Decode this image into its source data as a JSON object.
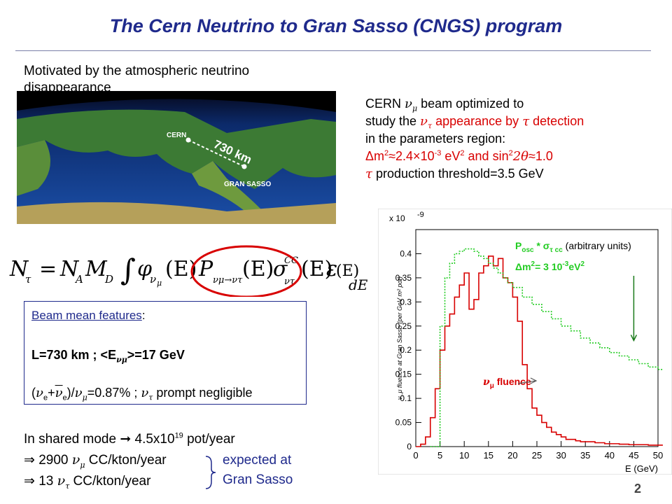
{
  "slide": {
    "title": "The Cern Neutrino to Gran Sasso (CNGS) program",
    "motivation": "Motivated by the atmospheric neutrino disappearance",
    "map": {
      "cern_label": "CERN",
      "distance_label": "730 km",
      "gransasso_label": "GRAN SASSO"
    },
    "cngs": {
      "line1_a": "CERN ",
      "line1_sym": "ν",
      "line1_sub": "μ",
      "line1_b": " beam optimized to",
      "line2_a": "study the ",
      "line2_sym": "ν",
      "line2_sub": "τ",
      "line2_b": " appearance by ",
      "line2_tau": "τ",
      "line2_c": " detection",
      "line3": "in the parameters region:",
      "line4_a": "Δm",
      "line4_exp1": "2",
      "line4_b": "≈2.4×10",
      "line4_exp2": "-3",
      "line4_c": " eV",
      "line4_exp3": "2",
      "line4_d": " and sin",
      "line4_exp4": "2",
      "line4_e": "2θ",
      "line4_f": "≈1.0",
      "line5_tau": "τ",
      "line5": " production threshold=3.5 GeV"
    },
    "formula": {
      "lhs": "N",
      "lhs_sub": "τ",
      "eq": "=",
      "na": "N",
      "na_sub": "A",
      "md": "M",
      "md_sub": "D",
      "integral": "∫",
      "phi": "φ",
      "phi_sub_nu": "ν",
      "phi_sub_mu": "μ",
      "argE": "(E)",
      "P": "P",
      "P_sub": "νμ→ντ",
      "sigma": "σ",
      "sigma_sup": "CC",
      "sigma_sub": "ντ",
      "eps": "ε",
      "dE": "dE"
    },
    "features": {
      "heading": "Beam mean features",
      "heading_colon": ":",
      "l_line_a": "L=730 km ; <E",
      "l_line_sub": "νμ",
      "l_line_b": ">=17 GeV",
      "ratio_a": "(",
      "ratio_nu": "ν",
      "ratio_sub_e": "e",
      "ratio_plus": "+",
      "ratio_nubar": "ν",
      "ratio_sub_e2": "e",
      "ratio_b": ")/",
      "ratio_nu2": "ν",
      "ratio_sub_mu": "μ",
      "ratio_c": "=0.87%  ; ",
      "ratio_nu3": "ν",
      "ratio_sub_tau": "τ",
      "ratio_d": " prompt negligible"
    },
    "shared_mode_a": "In shared mode ",
    "shared_mode_arrow": "➞",
    "shared_mode_b": " 4.5x10",
    "shared_mode_exp": "19",
    "shared_mode_c": " pot/year",
    "rate1_arrow": "⇒",
    "rate1_a": " 2900 ",
    "rate1_nu": "ν",
    "rate1_sub": "μ",
    "rate1_b": " CC/kton/year",
    "rate2_arrow": "⇒",
    "rate2_a": " 13 ",
    "rate2_nu": "ν",
    "rate2_sub": "τ",
    "rate2_b": " CC/kton/year",
    "expected_1": "expected at",
    "expected_2": "Gran Sasso",
    "page_number": "2"
  },
  "colors": {
    "title": "#1f2a8c",
    "highlight": "#d80000",
    "green": "#22cc22"
  },
  "chart_data": {
    "type": "line",
    "xlabel": "E (GeV)",
    "ylabel": "ν_μ fluence at Gran Sasso (per GeV m² pot)",
    "y_multiplier": "x 10",
    "y_multiplier_exp": "-9",
    "xlim": [
      0,
      50
    ],
    "ylim": [
      0,
      0.45
    ],
    "x_ticks": [
      0,
      5,
      10,
      15,
      20,
      25,
      30,
      35,
      40,
      45,
      50
    ],
    "y_ticks": [
      0,
      0.05,
      0.1,
      0.15,
      0.2,
      0.25,
      0.3,
      0.35,
      0.4
    ],
    "series": [
      {
        "name": "ν_μ fluence",
        "color": "#d80000",
        "style": "step",
        "x": [
          0,
          1,
          2,
          3,
          4,
          5,
          6,
          7,
          8,
          9,
          10,
          11,
          12,
          13,
          14,
          15,
          16,
          17,
          18,
          19,
          20,
          21,
          22,
          23,
          24,
          25,
          26,
          27,
          28,
          29,
          30,
          31,
          32,
          33,
          34,
          35,
          36,
          37,
          38,
          39,
          40,
          41,
          42,
          43,
          44,
          45,
          46,
          47,
          48,
          49,
          50
        ],
        "y": [
          0.0,
          0.005,
          0.02,
          0.06,
          0.12,
          0.2,
          0.25,
          0.275,
          0.31,
          0.335,
          0.36,
          0.285,
          0.305,
          0.36,
          0.375,
          0.395,
          0.375,
          0.39,
          0.35,
          0.34,
          0.31,
          0.26,
          0.17,
          0.12,
          0.08,
          0.065,
          0.05,
          0.04,
          0.03,
          0.025,
          0.02,
          0.015,
          0.015,
          0.012,
          0.01,
          0.01,
          0.01,
          0.008,
          0.008,
          0.006,
          0.006,
          0.006,
          0.005,
          0.005,
          0.004,
          0.004,
          0.004,
          0.004,
          0.003,
          0.003,
          0.003
        ]
      },
      {
        "name": "P_osc * σ_τ cc (arbitrary units)",
        "color": "#22cc22",
        "style": "step-dotted",
        "x": [
          3,
          4,
          5,
          6,
          7,
          8,
          9,
          10,
          11,
          12,
          13,
          14,
          15,
          16,
          17,
          18,
          19,
          20,
          22,
          24,
          26,
          28,
          30,
          32,
          34,
          36,
          38,
          40,
          42,
          44,
          46,
          48,
          50
        ],
        "y": [
          0.0,
          0.0,
          0.25,
          0.35,
          0.38,
          0.4,
          0.405,
          0.41,
          0.41,
          0.405,
          0.395,
          0.39,
          0.38,
          0.37,
          0.36,
          0.35,
          0.34,
          0.33,
          0.31,
          0.295,
          0.28,
          0.265,
          0.25,
          0.24,
          0.225,
          0.215,
          0.205,
          0.195,
          0.188,
          0.18,
          0.172,
          0.165,
          0.16
        ]
      }
    ],
    "annotations": [
      {
        "text": "P",
        "sub": "osc",
        "rest": " * σ",
        "sub2": "τ cc",
        "tail": " (arbitrary units)",
        "color": "#22cc22"
      },
      {
        "text": "Δm",
        "sup": "2",
        "rest": "= 3 10",
        "sup2": "-3",
        "tail": "eV",
        "sup3": "2",
        "color": "#22cc22",
        "arrow_to_x": 45,
        "arrow_to_y": 0.22
      },
      {
        "text": "ν",
        "sub": "μ",
        "tail": " fluence",
        "color": "#d80000",
        "arrow_to_x": 25,
        "arrow_to_y": 0.07
      }
    ]
  }
}
